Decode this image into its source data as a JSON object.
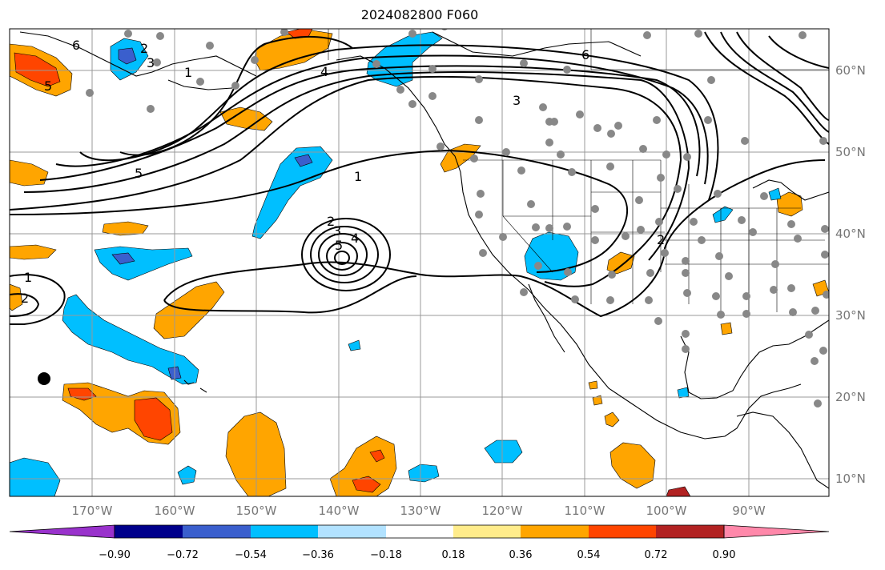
{
  "title": "2024082800 F060",
  "map": {
    "lon_labels": [
      "170°W",
      "160°W",
      "150°W",
      "140°W",
      "130°W",
      "120°W",
      "110°W",
      "100°W",
      "90°W"
    ],
    "lat_labels": [
      "60°N",
      "50°N",
      "40°N",
      "30°N",
      "20°N",
      "10°N"
    ]
  },
  "contour_labels": [
    "6",
    "5",
    "4",
    "3",
    "2",
    "1",
    "5",
    "5",
    "4",
    "3",
    "2",
    "1",
    "6",
    "3",
    "2",
    "1",
    "2"
  ],
  "colorbar": {
    "tick_labels": [
      "−0.90",
      "−0.72",
      "−0.54",
      "−0.36",
      "−0.18",
      "0.18",
      "0.36",
      "0.54",
      "0.72",
      "0.90"
    ],
    "colors": [
      "#9932cc",
      "#00008b",
      "#3a5fcd",
      "#00bfff",
      "#b2e2ff",
      "#ffffff",
      "#ffec8b",
      "#ffa500",
      "#ff4500",
      "#b22222",
      "#ff88aa"
    ]
  },
  "colors": {
    "orange": "#ffa500",
    "red": "#ff4500",
    "light_blue": "#00bfff",
    "mid_blue": "#3a5fcd",
    "station_dot": "#888888",
    "grid": "#999999"
  }
}
